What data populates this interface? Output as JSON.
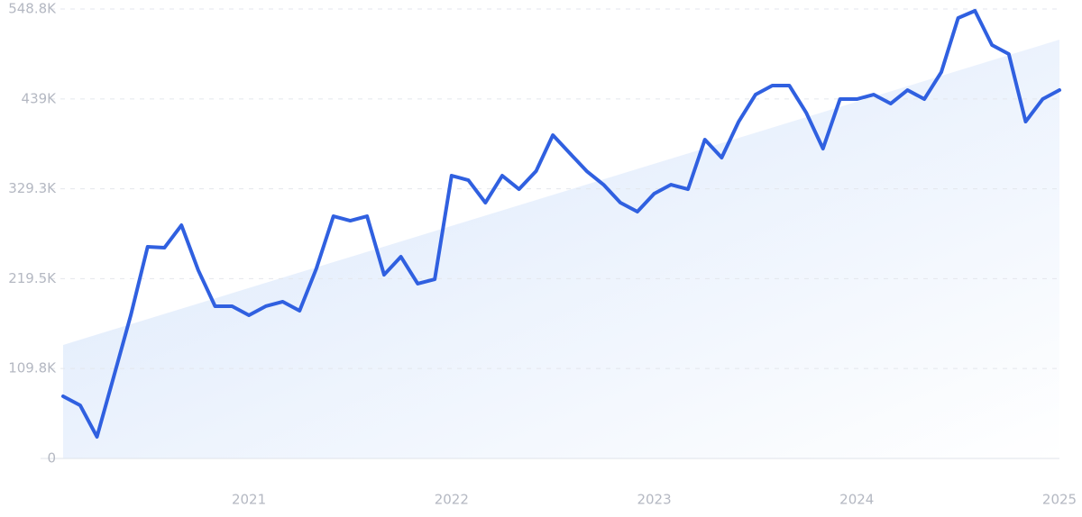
{
  "chart_data": {
    "type": "line",
    "x": [
      2020.083,
      2020.167,
      2020.25,
      2020.333,
      2020.417,
      2020.5,
      2020.583,
      2020.667,
      2020.75,
      2020.833,
      2020.917,
      2021,
      2021.083,
      2021.167,
      2021.25,
      2021.333,
      2021.417,
      2021.5,
      2021.583,
      2021.667,
      2021.75,
      2021.833,
      2021.917,
      2022,
      2022.083,
      2022.167,
      2022.25,
      2022.333,
      2022.417,
      2022.5,
      2022.583,
      2022.667,
      2022.75,
      2022.833,
      2022.917,
      2023,
      2023.083,
      2023.167,
      2023.25,
      2023.333,
      2023.417,
      2023.5,
      2023.583,
      2023.667,
      2023.75,
      2023.833,
      2023.917,
      2024,
      2024.083,
      2024.167,
      2024.25,
      2024.333,
      2024.417,
      2024.5,
      2024.583,
      2024.667,
      2024.75,
      2024.833,
      2024.917,
      2025
    ],
    "series": [
      {
        "color": "#3060e0",
        "values": [
          75900,
          64900,
          26400,
          100000,
          174900,
          258400,
          257300,
          284800,
          229800,
          185900,
          185900,
          174900,
          185900,
          191400,
          180400,
          232000,
          295800,
          290300,
          295800,
          224300,
          246300,
          213400,
          218800,
          345300,
          339800,
          312300,
          345300,
          328800,
          350800,
          394800,
          372800,
          350800,
          334300,
          312300,
          301300,
          323300,
          334300,
          328800,
          389300,
          367300,
          411300,
          444300,
          455300,
          455300,
          422300,
          378300,
          438800,
          438800,
          444300,
          433300,
          449800,
          438800,
          471800,
          537800,
          546600,
          504800,
          493800,
          411300,
          438800,
          449800
        ]
      }
    ],
    "trend": {
      "x": [
        2020.083,
        2025
      ],
      "values": [
        138600,
        511400
      ]
    },
    "xlim": [
      2020.083,
      2025
    ],
    "xticks": [
      2021,
      2022,
      2023,
      2024,
      2025
    ],
    "ylim": [
      0,
      548800
    ],
    "yticks": [
      0,
      {
        "value": 109800,
        "label": "109.8K"
      },
      {
        "value": 219500,
        "label": "219.5K"
      },
      {
        "value": 329300,
        "label": "329.3K"
      },
      {
        "value": 439000,
        "label": "439K"
      },
      {
        "value": 548800,
        "label": "548.8K"
      }
    ],
    "grid": true
  }
}
